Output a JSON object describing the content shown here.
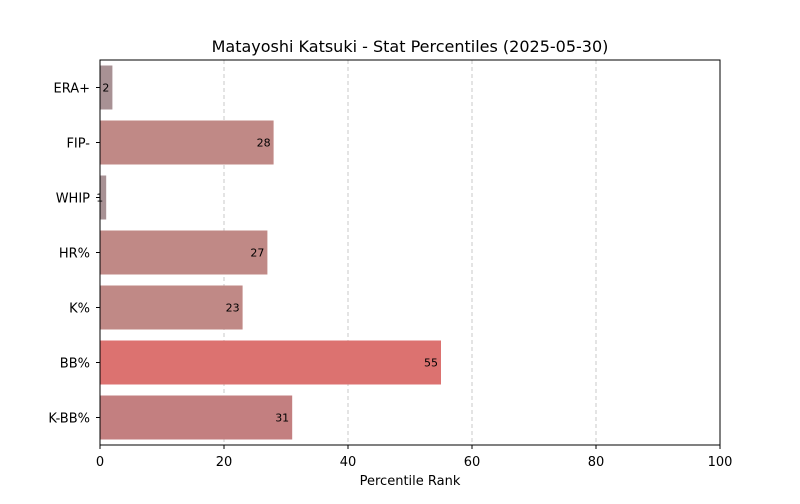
{
  "chart_data": {
    "type": "bar",
    "orientation": "horizontal",
    "title": "Matayoshi Katsuki - Stat Percentiles (2025-05-30)",
    "xlabel": "Percentile Rank",
    "ylabel": "",
    "xlim": [
      0,
      100
    ],
    "xticks": [
      "0",
      "20",
      "40",
      "60",
      "80",
      "100"
    ],
    "grid": "x-dashed",
    "categories": [
      "ERA+",
      "FIP-",
      "WHIP",
      "HR%",
      "K%",
      "BB%",
      "K-BB%"
    ],
    "values": [
      2,
      28,
      1,
      27,
      23,
      55,
      31
    ],
    "colors": [
      "#a89194",
      "#c08986",
      "#a89194",
      "#c08986",
      "#c08986",
      "#dc7270",
      "#c37f80"
    ]
  }
}
